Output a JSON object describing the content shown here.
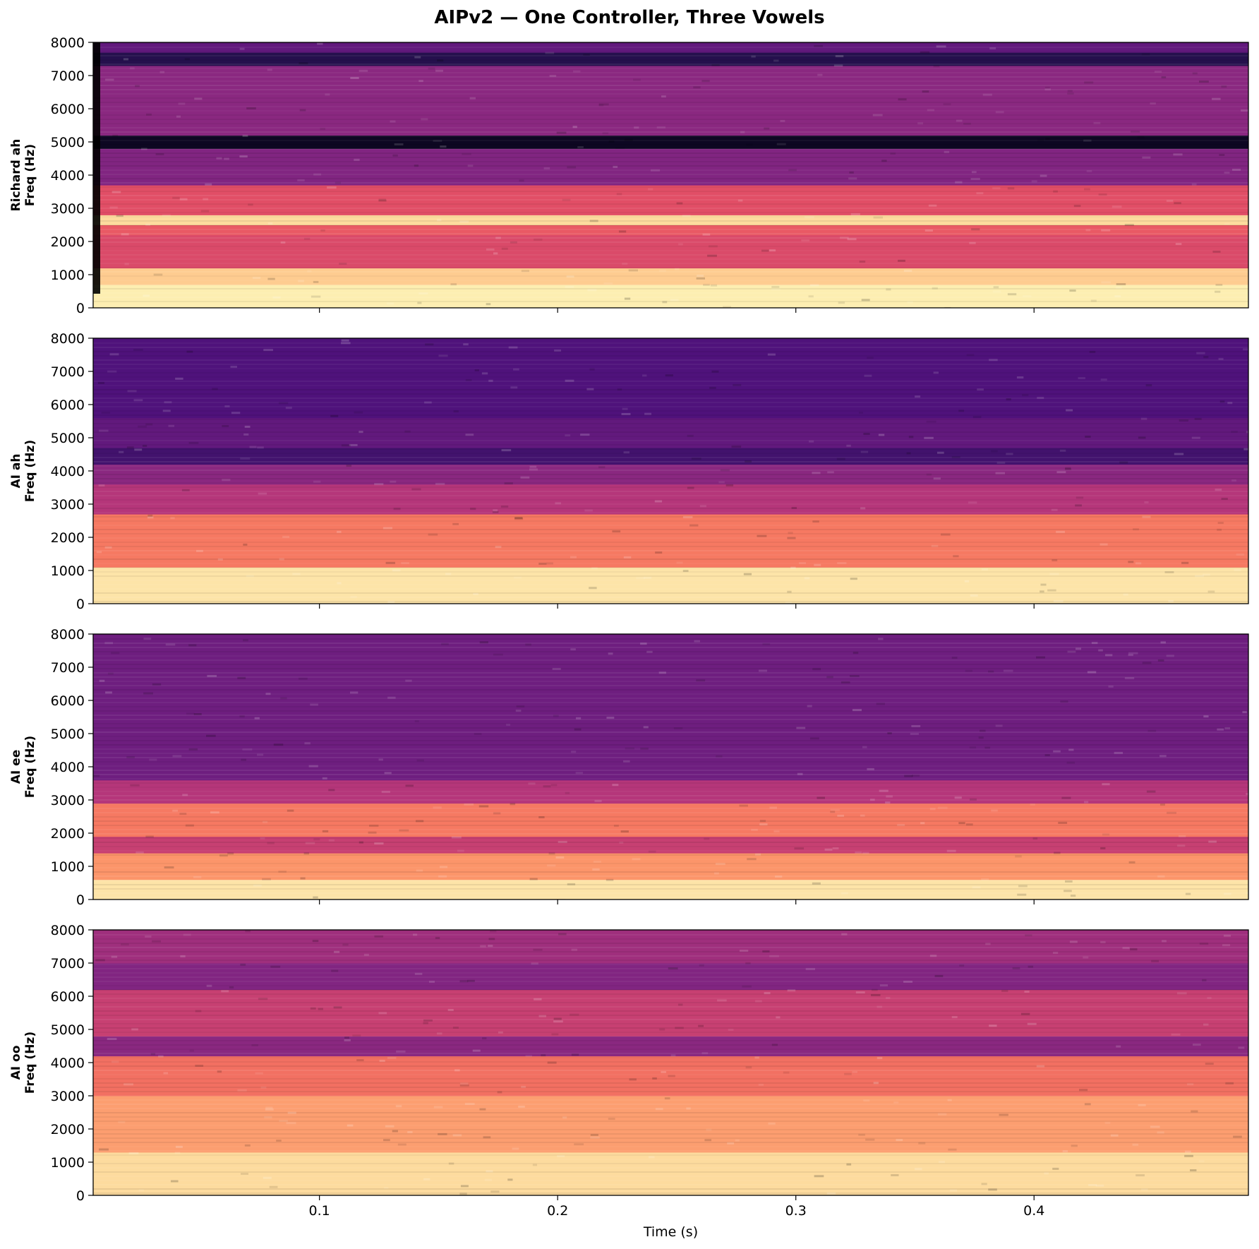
{
  "figure": {
    "title": "AIPv2 — One Controller, Three Vowels"
  },
  "chart_data": [
    {
      "type": "heatmap",
      "ylabel_line1": "Richard ah",
      "ylabel_line2": "Freq (Hz)",
      "ylim": [
        0,
        8000
      ],
      "y_ticks": [
        0,
        1000,
        2000,
        3000,
        4000,
        5000,
        6000,
        7000,
        8000
      ],
      "xlim": [
        0.005,
        0.49
      ],
      "x_ticks": [
        0.1,
        0.2,
        0.3,
        0.4
      ],
      "colormap": "magma",
      "bands": [
        {
          "f0": 0,
          "f1": 700,
          "level": 0.97
        },
        {
          "f0": 700,
          "f1": 1200,
          "level": 0.9
        },
        {
          "f0": 1200,
          "f1": 2200,
          "level": 0.6
        },
        {
          "f0": 2200,
          "f1": 2500,
          "level": 0.65
        },
        {
          "f0": 2500,
          "f1": 2800,
          "level": 0.93
        },
        {
          "f0": 2800,
          "f1": 3700,
          "level": 0.62
        },
        {
          "f0": 3700,
          "f1": 4800,
          "level": 0.38
        },
        {
          "f0": 4800,
          "f1": 5200,
          "level": 0.06
        },
        {
          "f0": 5200,
          "f1": 7300,
          "level": 0.4
        },
        {
          "f0": 7300,
          "f1": 7700,
          "level": 0.15
        },
        {
          "f0": 7700,
          "f1": 8000,
          "level": 0.3
        }
      ]
    },
    {
      "type": "heatmap",
      "ylabel_line1": "AI ah",
      "ylabel_line2": "Freq (Hz)",
      "ylim": [
        0,
        8000
      ],
      "y_ticks": [
        0,
        1000,
        2000,
        3000,
        4000,
        5000,
        6000,
        7000,
        8000
      ],
      "xlim": [
        0.005,
        0.49
      ],
      "x_ticks": [
        0.1,
        0.2,
        0.3,
        0.4
      ],
      "colormap": "magma",
      "bands": [
        {
          "f0": 0,
          "f1": 1100,
          "level": 0.95
        },
        {
          "f0": 1100,
          "f1": 2700,
          "level": 0.72
        },
        {
          "f0": 2700,
          "f1": 3600,
          "level": 0.5
        },
        {
          "f0": 3600,
          "f1": 4200,
          "level": 0.4
        },
        {
          "f0": 4200,
          "f1": 4700,
          "level": 0.22
        },
        {
          "f0": 4700,
          "f1": 5600,
          "level": 0.3
        },
        {
          "f0": 5600,
          "f1": 8000,
          "level": 0.25
        }
      ]
    },
    {
      "type": "heatmap",
      "ylabel_line1": "AI ee",
      "ylabel_line2": "Freq (Hz)",
      "ylim": [
        0,
        8000
      ],
      "y_ticks": [
        0,
        1000,
        2000,
        3000,
        4000,
        5000,
        6000,
        7000,
        8000
      ],
      "xlim": [
        0.005,
        0.49
      ],
      "x_ticks": [
        0.1,
        0.2,
        0.3,
        0.4
      ],
      "colormap": "magma",
      "bands": [
        {
          "f0": 0,
          "f1": 600,
          "level": 0.95
        },
        {
          "f0": 600,
          "f1": 1400,
          "level": 0.78
        },
        {
          "f0": 1400,
          "f1": 1900,
          "level": 0.55
        },
        {
          "f0": 1900,
          "f1": 2900,
          "level": 0.72
        },
        {
          "f0": 2900,
          "f1": 3600,
          "level": 0.5
        },
        {
          "f0": 3600,
          "f1": 8000,
          "level": 0.33
        }
      ]
    },
    {
      "type": "heatmap",
      "ylabel_line1": "AI oo",
      "ylabel_line2": "Freq (Hz)",
      "ylim": [
        0,
        8000
      ],
      "y_ticks": [
        0,
        1000,
        2000,
        3000,
        4000,
        5000,
        6000,
        7000,
        8000
      ],
      "xlim": [
        0.005,
        0.49
      ],
      "x_ticks": [
        0.1,
        0.2,
        0.3,
        0.4
      ],
      "xlabel": "Time (s)",
      "colormap": "magma",
      "bands": [
        {
          "f0": 0,
          "f1": 1300,
          "level": 0.93
        },
        {
          "f0": 1300,
          "f1": 3000,
          "level": 0.8
        },
        {
          "f0": 3000,
          "f1": 4200,
          "level": 0.7
        },
        {
          "f0": 4200,
          "f1": 4800,
          "level": 0.4
        },
        {
          "f0": 4800,
          "f1": 6200,
          "level": 0.55
        },
        {
          "f0": 6200,
          "f1": 7000,
          "level": 0.38
        },
        {
          "f0": 7000,
          "f1": 8000,
          "level": 0.45
        }
      ]
    }
  ]
}
